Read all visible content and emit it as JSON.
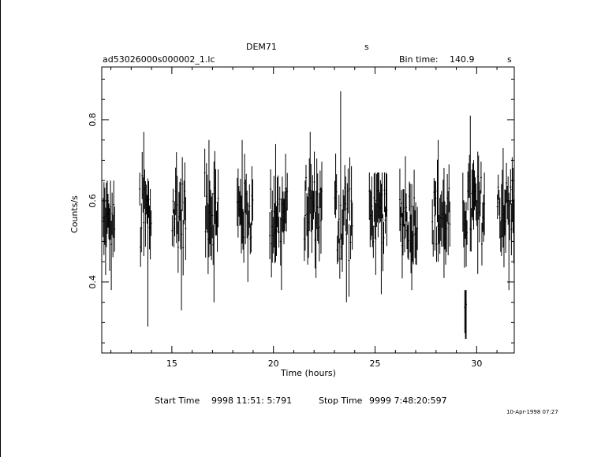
{
  "header": {
    "object_name": "DEM71",
    "object_suffix": "s",
    "file_name": "ad53026000s000002_1.lc",
    "bin_time_label": "Bin time:",
    "bin_time_value": "140.9",
    "bin_time_unit": "s"
  },
  "footer": {
    "start_label": "Start Time",
    "start_value": "9998 11:51: 5:791",
    "stop_label": "Stop Time",
    "stop_value": "9999  7:48:20:597",
    "plot_date": "10-Apr-1998 07:27"
  },
  "chart_data": {
    "type": "scatter",
    "xlabel": "Time (hours)",
    "ylabel": "Counts/s",
    "xlim": [
      11.55,
      31.85
    ],
    "ylim": [
      0.225,
      0.93
    ],
    "x_major_ticks": [
      15,
      20,
      25,
      30
    ],
    "y_major_ticks": [
      0.4,
      0.6,
      0.8
    ],
    "grid": false,
    "segments": [
      {
        "x_start": 11.6,
        "x_end": 12.2,
        "y_mean": 0.54,
        "y_min": 0.38,
        "y_max": 0.65
      },
      {
        "x_start": 13.4,
        "x_end": 14.0,
        "y_mean": 0.56,
        "y_min": 0.29,
        "y_max": 0.77
      },
      {
        "x_start": 15.0,
        "x_end": 15.7,
        "y_mean": 0.57,
        "y_min": 0.33,
        "y_max": 0.72
      },
      {
        "x_start": 16.6,
        "x_end": 17.3,
        "y_mean": 0.58,
        "y_min": 0.35,
        "y_max": 0.75
      },
      {
        "x_start": 18.2,
        "x_end": 19.0,
        "y_mean": 0.57,
        "y_min": 0.4,
        "y_max": 0.75
      },
      {
        "x_start": 19.8,
        "x_end": 20.7,
        "y_mean": 0.56,
        "y_min": 0.38,
        "y_max": 0.74
      },
      {
        "x_start": 21.5,
        "x_end": 22.4,
        "y_mean": 0.58,
        "y_min": 0.41,
        "y_max": 0.77
      },
      {
        "x_start": 23.0,
        "x_end": 23.9,
        "y_mean": 0.56,
        "y_min": 0.35,
        "y_max": 0.87
      },
      {
        "x_start": 24.7,
        "x_end": 25.6,
        "y_mean": 0.56,
        "y_min": 0.37,
        "y_max": 0.67
      },
      {
        "x_start": 26.2,
        "x_end": 27.1,
        "y_mean": 0.56,
        "y_min": 0.38,
        "y_max": 0.71
      },
      {
        "x_start": 27.8,
        "x_end": 28.7,
        "y_mean": 0.56,
        "y_min": 0.41,
        "y_max": 0.75
      },
      {
        "x_start": 29.4,
        "x_end": 29.5,
        "y_mean": 0.32,
        "y_min": 0.26,
        "y_max": 0.38
      },
      {
        "x_start": 29.3,
        "x_end": 30.4,
        "y_mean": 0.58,
        "y_min": 0.42,
        "y_max": 0.81
      },
      {
        "x_start": 31.0,
        "x_end": 31.85,
        "y_mean": 0.58,
        "y_min": 0.38,
        "y_max": 0.73
      }
    ],
    "data_color": "#000000"
  }
}
